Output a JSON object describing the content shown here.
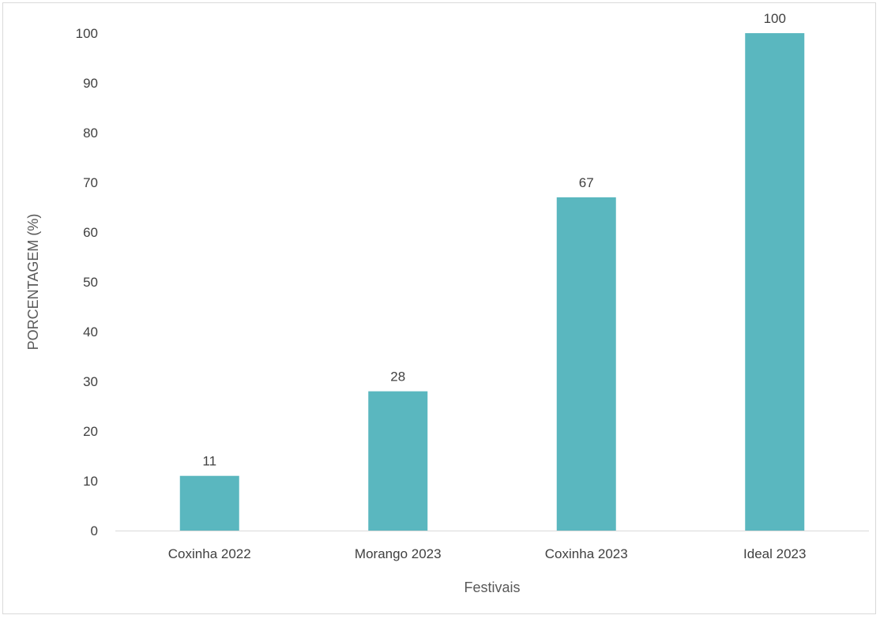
{
  "chart_data": {
    "type": "bar",
    "categories": [
      "Coxinha 2022",
      "Morango 2023",
      "Coxinha 2023",
      "Ideal 2023"
    ],
    "series": [
      {
        "values": [
          11,
          28,
          67,
          100
        ],
        "color": "#5ab7bf"
      }
    ],
    "data_labels": [
      "11",
      "28",
      "67",
      "100"
    ],
    "title": "",
    "xlabel": "Festivais",
    "ylabel": "PORCENTAGEM (%)",
    "ylim": [
      0,
      100
    ],
    "yticks": [
      "0",
      "10",
      "20",
      "30",
      "40",
      "50",
      "60",
      "70",
      "80",
      "90",
      "100"
    ],
    "grid": false,
    "legend": "none"
  }
}
